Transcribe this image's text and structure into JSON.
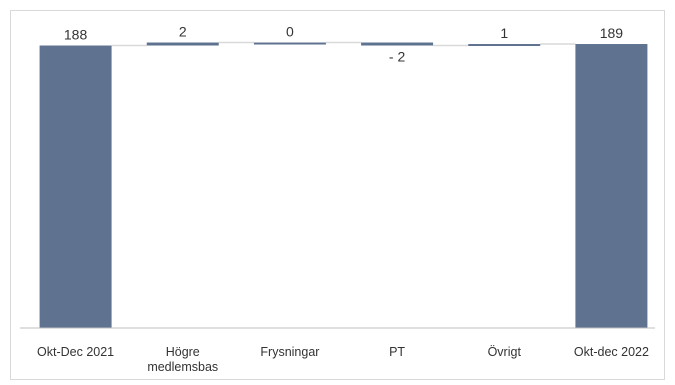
{
  "chart_data": {
    "type": "waterfall",
    "title": "",
    "xlabel": "",
    "ylabel": "",
    "ylim": [
      0,
      195
    ],
    "grid": false,
    "legend": "none",
    "colors": {
      "bar": "#5f7290",
      "connector": "#d9d9d9",
      "axis": "#bfbfbf",
      "text": "#333333"
    },
    "categories": [
      [
        "Okt-Dec  2021"
      ],
      [
        "Högre",
        "medlemsbas"
      ],
      [
        "Frysningar"
      ],
      [
        "PT"
      ],
      [
        "Övrigt"
      ],
      [
        "Okt-dec 2022"
      ]
    ],
    "values": [
      188,
      2,
      0,
      -2,
      1,
      189
    ],
    "value_labels": [
      "188",
      "2",
      "0",
      "- 2",
      "1",
      "189"
    ],
    "kinds": [
      "total",
      "delta",
      "delta",
      "delta",
      "delta",
      "total"
    ]
  }
}
